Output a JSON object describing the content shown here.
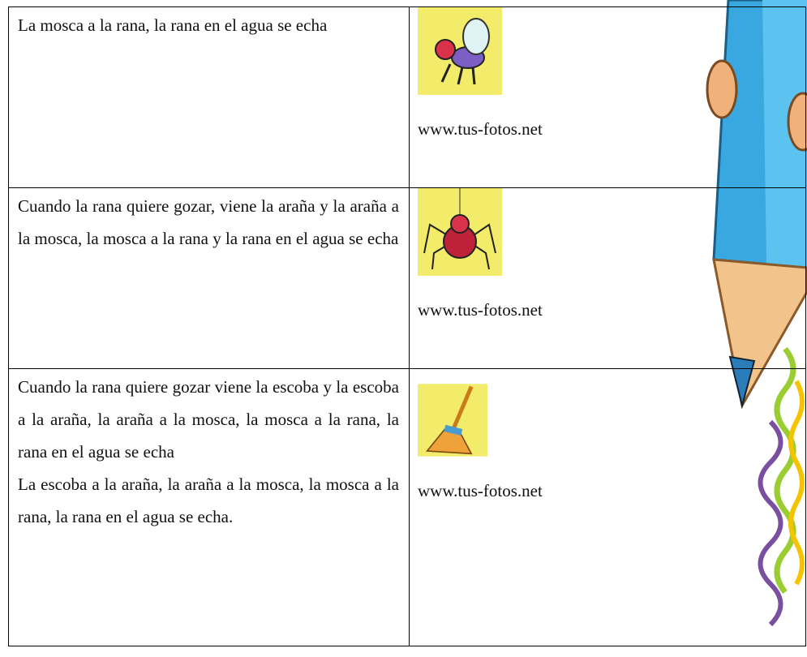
{
  "table": {
    "rows": [
      {
        "text": [
          "La mosca a la rana, la rana en el agua se echa"
        ],
        "caption": "www.tus-fotos.net"
      },
      {
        "text": [
          "Cuando la rana quiere gozar, viene la araña y la araña a la mosca, la mosca a la rana y la rana en el agua se echa"
        ],
        "caption": "www.tus-fotos.net"
      },
      {
        "text": [
          "Cuando la rana quiere gozar viene la escoba y la escoba a la araña, la araña a la mosca, la mosca a la rana, la rana en el agua se echa",
          "La escoba a la araña, la araña a la mosca, la mosca a la rana, la rana en el agua se echa."
        ],
        "caption": "www.tus-fotos.net"
      }
    ]
  }
}
